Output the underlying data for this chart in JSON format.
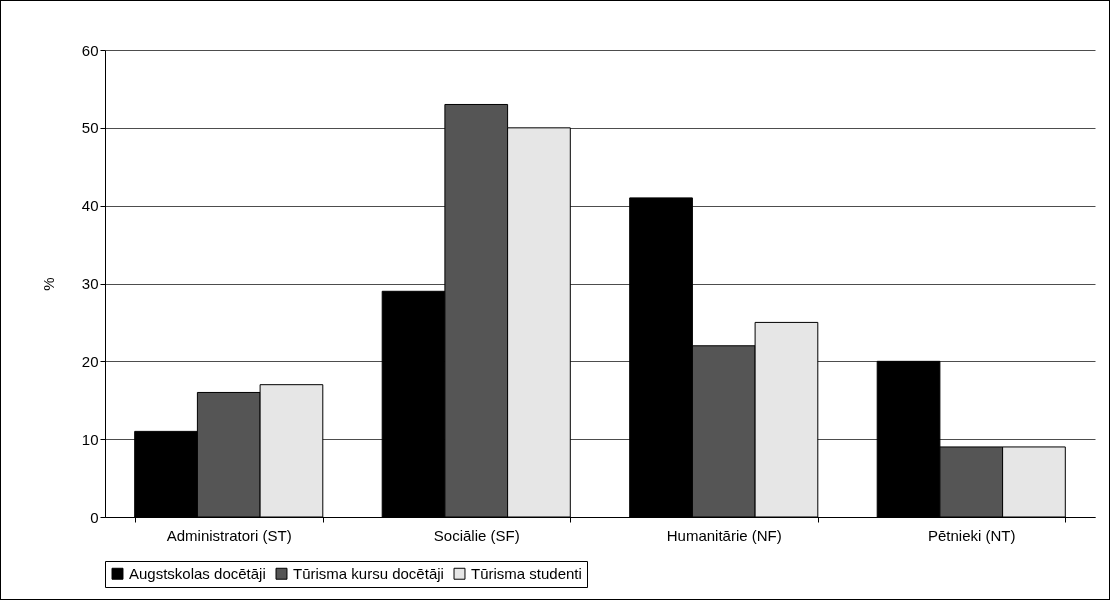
{
  "chart_data": {
    "type": "bar",
    "ylabel": "%",
    "categories": [
      "Administratori (ST)",
      "Sociālie (SF)",
      "Humanitārie (NF)",
      "Pētnieki (NT)"
    ],
    "series": [
      {
        "name": "Augstskolas docētāji",
        "color": "#000000",
        "values": [
          11,
          29,
          41,
          20
        ]
      },
      {
        "name": "Tūrisma kursu docētāji",
        "color": "#555555",
        "values": [
          16,
          53,
          22,
          9
        ]
      },
      {
        "name": "Tūrisma studenti",
        "color": "#e6e6e6",
        "values": [
          17,
          50,
          25,
          9
        ]
      }
    ],
    "ylim": [
      0,
      60
    ],
    "yticks": [
      0,
      10,
      20,
      30,
      40,
      50,
      60
    ],
    "grid": "y",
    "legend": "bottom"
  }
}
